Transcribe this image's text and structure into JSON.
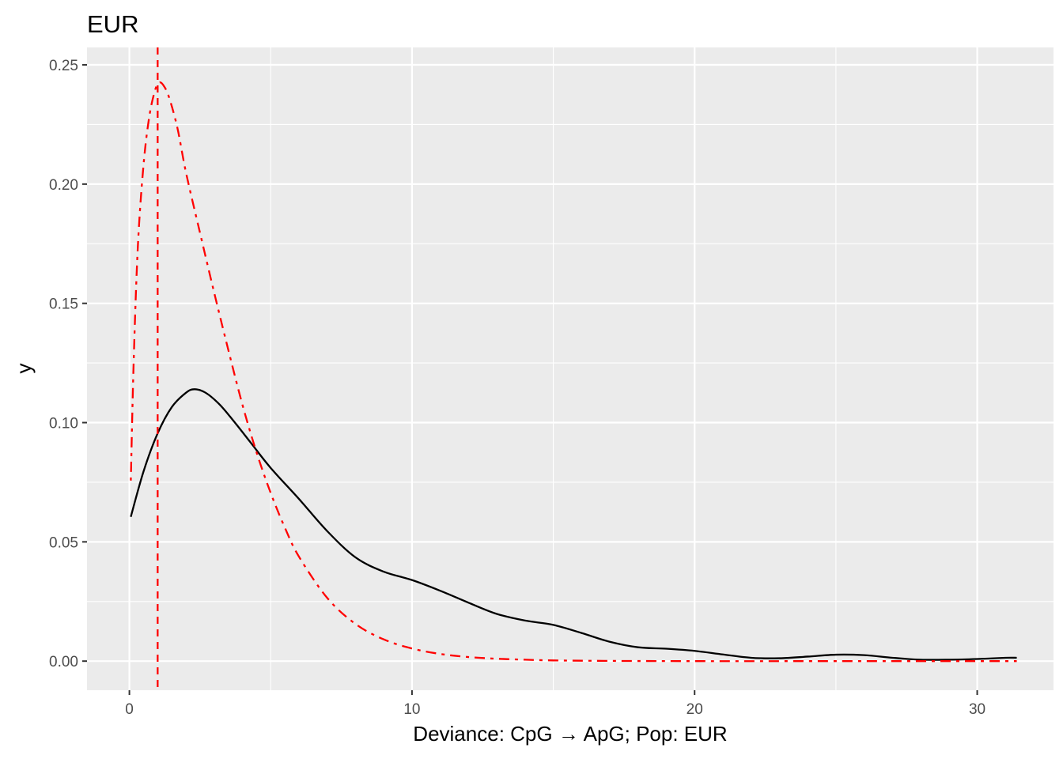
{
  "chart_data": {
    "type": "line",
    "title": "EUR",
    "xlabel": "Deviance: CpG → ApG; Pop: EUR",
    "ylabel": "y",
    "xlim": [
      -1.5,
      32.7
    ],
    "ylim": [
      -0.0122,
      0.2573
    ],
    "x_ticks": [
      0,
      10,
      20,
      30
    ],
    "x_tick_labels": [
      "0",
      "10",
      "20",
      "30"
    ],
    "y_ticks": [
      0.0,
      0.05,
      0.1,
      0.15,
      0.2,
      0.25
    ],
    "y_tick_labels": [
      "0.00",
      "0.05",
      "0.10",
      "0.15",
      "0.20",
      "0.25"
    ],
    "grid": true,
    "panel_background": "#ebebeb",
    "series": [
      {
        "style": "solid",
        "color": "#000000",
        "x": [
          0.05,
          0.5,
          1.0,
          1.5,
          2.0,
          2.3,
          2.7,
          3.2,
          3.7,
          4.3,
          5.0,
          6.0,
          7.0,
          8.0,
          9.0,
          10.0,
          11.0,
          12.0,
          13.0,
          14.0,
          15.0,
          16.0,
          17.0,
          18.0,
          19.0,
          20.0,
          21.0,
          22.0,
          23.0,
          24.0,
          25.0,
          26.0,
          27.0,
          28.0,
          29.0,
          30.0,
          31.0,
          31.4
        ],
        "y": [
          0.0605,
          0.0795,
          0.0955,
          0.1065,
          0.1125,
          0.114,
          0.1125,
          0.1075,
          0.1005,
          0.0915,
          0.081,
          0.068,
          0.0545,
          0.0435,
          0.0375,
          0.034,
          0.0295,
          0.0245,
          0.0198,
          0.017,
          0.0152,
          0.0118,
          0.0081,
          0.0058,
          0.0052,
          0.0043,
          0.0028,
          0.0014,
          0.0012,
          0.0019,
          0.0027,
          0.0025,
          0.0014,
          0.0006,
          0.0006,
          0.0009,
          0.0014,
          0.0014
        ]
      },
      {
        "style": "dashdot",
        "color": "#ff0000",
        "x": [
          0.05,
          0.15,
          0.3,
          0.5,
          0.7,
          0.9,
          1.05,
          1.2,
          1.4,
          1.7,
          2.0,
          2.5,
          3.0,
          3.5,
          4.0,
          4.5,
          5.0,
          5.5,
          6.0,
          7.0,
          8.0,
          9.0,
          10.0,
          11.0,
          12.0,
          13.0,
          14.0,
          15.0,
          17.0,
          20.0,
          25.0,
          31.4
        ],
        "y": [
          0.0757,
          0.125,
          0.174,
          0.208,
          0.228,
          0.239,
          0.2425,
          0.2415,
          0.2365,
          0.2235,
          0.205,
          0.1795,
          0.1545,
          0.1305,
          0.1075,
          0.0875,
          0.0705,
          0.056,
          0.0438,
          0.0265,
          0.0156,
          0.0091,
          0.0053,
          0.003,
          0.0017,
          0.001,
          0.0006,
          0.0003,
          0.0001,
          0.0,
          0.0,
          0.0
        ]
      }
    ],
    "vlines": [
      {
        "x": 1.0,
        "style": "dashed",
        "color": "#ff0000"
      }
    ]
  }
}
